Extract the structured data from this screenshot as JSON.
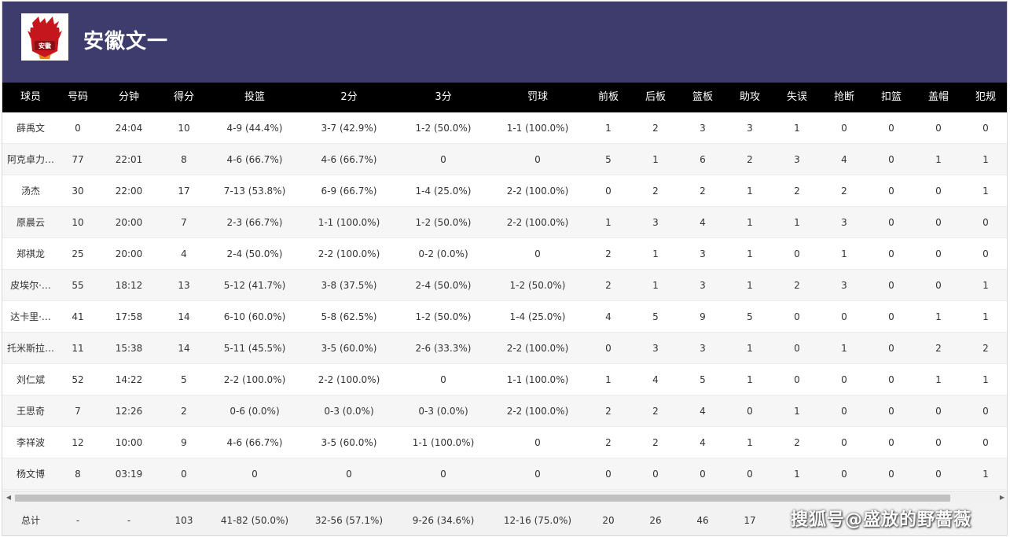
{
  "header": {
    "team_name": "安徽文一",
    "logo_text": "安徽"
  },
  "colors": {
    "header_bg": "#3e3b6d",
    "table_header_bg": "#000000",
    "row_alt_bg": "#f6f6f6",
    "footer_bg": "#f2f2f2"
  },
  "columns": [
    "球员",
    "号码",
    "分钟",
    "得分",
    "投篮",
    "2分",
    "3分",
    "罚球",
    "前板",
    "后板",
    "篮板",
    "助攻",
    "失误",
    "抢断",
    "扣篮",
    "盖帽",
    "犯规"
  ],
  "rows": [
    [
      "薛禹文",
      "0",
      "24:04",
      "10",
      "4-9 (44.4%)",
      "3-7 (42.9%)",
      "1-2 (50.0%)",
      "1-1 (100.0%)",
      "1",
      "2",
      "3",
      "3",
      "1",
      "0",
      "0",
      "0",
      "0"
    ],
    [
      "阿克卓力…",
      "77",
      "22:01",
      "8",
      "4-6 (66.7%)",
      "4-6 (66.7%)",
      "0",
      "0",
      "5",
      "1",
      "6",
      "2",
      "3",
      "4",
      "0",
      "1",
      "1"
    ],
    [
      "汤杰",
      "30",
      "22:00",
      "17",
      "7-13 (53.8%)",
      "6-9 (66.7%)",
      "1-4 (25.0%)",
      "2-2 (100.0%)",
      "0",
      "2",
      "2",
      "1",
      "2",
      "2",
      "0",
      "0",
      "1"
    ],
    [
      "原晨云",
      "10",
      "20:00",
      "7",
      "2-3 (66.7%)",
      "1-1 (100.0%)",
      "1-2 (50.0%)",
      "2-2 (100.0%)",
      "1",
      "3",
      "4",
      "1",
      "1",
      "3",
      "0",
      "0",
      "0"
    ],
    [
      "郑祺龙",
      "25",
      "20:00",
      "4",
      "2-4 (50.0%)",
      "2-2 (100.0%)",
      "0-2 (0.0%)",
      "0",
      "2",
      "1",
      "3",
      "1",
      "0",
      "1",
      "0",
      "0",
      "0"
    ],
    [
      "皮埃尔·…",
      "55",
      "18:12",
      "13",
      "5-12 (41.7%)",
      "3-8 (37.5%)",
      "2-4 (50.0%)",
      "1-2 (50.0%)",
      "2",
      "1",
      "3",
      "1",
      "2",
      "3",
      "0",
      "0",
      "1"
    ],
    [
      "达卡里·…",
      "41",
      "17:58",
      "14",
      "6-10 (60.0%)",
      "5-8 (62.5%)",
      "1-2 (50.0%)",
      "1-4 (25.0%)",
      "4",
      "5",
      "9",
      "5",
      "0",
      "0",
      "0",
      "1",
      "1"
    ],
    [
      "托米斯拉…",
      "11",
      "15:38",
      "14",
      "5-11 (45.5%)",
      "3-5 (60.0%)",
      "2-6 (33.3%)",
      "2-2 (100.0%)",
      "0",
      "3",
      "3",
      "1",
      "0",
      "1",
      "0",
      "2",
      "2"
    ],
    [
      "刘仁斌",
      "52",
      "14:22",
      "5",
      "2-2 (100.0%)",
      "2-2 (100.0%)",
      "0",
      "1-1 (100.0%)",
      "1",
      "4",
      "5",
      "1",
      "0",
      "0",
      "0",
      "1",
      "1"
    ],
    [
      "王思奇",
      "7",
      "12:26",
      "2",
      "0-6 (0.0%)",
      "0-3 (0.0%)",
      "0-3 (0.0%)",
      "2-2 (100.0%)",
      "2",
      "2",
      "4",
      "0",
      "1",
      "0",
      "0",
      "0",
      "0"
    ],
    [
      "李祥波",
      "12",
      "10:00",
      "9",
      "4-6 (66.7%)",
      "3-5 (60.0%)",
      "1-1 (100.0%)",
      "0",
      "2",
      "2",
      "4",
      "1",
      "2",
      "0",
      "0",
      "0",
      "0"
    ],
    [
      "杨文博",
      "8",
      "03:19",
      "0",
      "0",
      "0",
      "0",
      "0",
      "0",
      "0",
      "0",
      "0",
      "1",
      "0",
      "0",
      "0",
      "1"
    ]
  ],
  "totals": [
    "总计",
    "-",
    "-",
    "103",
    "41-82 (50.0%)",
    "32-56 (57.1%)",
    "9-26 (34.6%)",
    "12-16 (75.0%)",
    "20",
    "26",
    "46",
    "17",
    "",
    "",
    "",
    "",
    ""
  ],
  "scrollbar": {
    "left_arrow": "◀",
    "right_arrow": "▶"
  },
  "watermark": "搜狐号@盛放的野蔷薇"
}
